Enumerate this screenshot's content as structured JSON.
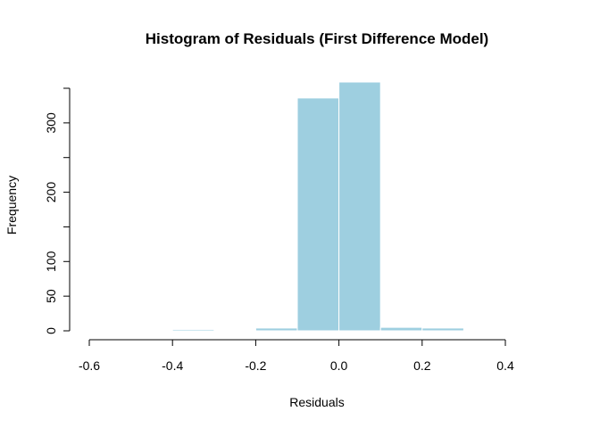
{
  "chart_data": {
    "type": "bar",
    "title": "Histogram of Residuals (First Difference Model)",
    "xlabel": "Residuals",
    "ylabel": "Frequency",
    "bar_color": "#9ECFE0",
    "border_color": "#FFFFFF",
    "xlim": [
      -0.6,
      0.5
    ],
    "ylim": [
      0,
      360
    ],
    "bins": [
      {
        "x0": -0.6,
        "x1": -0.5,
        "count": 0
      },
      {
        "x0": -0.5,
        "x1": -0.4,
        "count": 1
      },
      {
        "x0": -0.4,
        "x1": -0.3,
        "count": 2
      },
      {
        "x0": -0.3,
        "x1": -0.2,
        "count": 0
      },
      {
        "x0": -0.2,
        "x1": -0.1,
        "count": 4
      },
      {
        "x0": -0.1,
        "x1": 0.0,
        "count": 336
      },
      {
        "x0": 0.0,
        "x1": 0.1,
        "count": 359
      },
      {
        "x0": 0.1,
        "x1": 0.2,
        "count": 5
      },
      {
        "x0": 0.2,
        "x1": 0.3,
        "count": 4
      },
      {
        "x0": 0.3,
        "x1": 0.4,
        "count": 0
      },
      {
        "x0": 0.4,
        "x1": 0.5,
        "count": 0
      }
    ],
    "x_ticks": [
      {
        "value": -0.6,
        "label": "-0.6"
      },
      {
        "value": -0.4,
        "label": "-0.4"
      },
      {
        "value": -0.2,
        "label": "-0.2"
      },
      {
        "value": 0.0,
        "label": "0.0"
      },
      {
        "value": 0.2,
        "label": "0.2"
      },
      {
        "value": 0.4,
        "label": "0.4"
      }
    ],
    "y_ticks": [
      {
        "value": 0,
        "label": "0"
      },
      {
        "value": 50,
        "label": "50"
      },
      {
        "value": 100,
        "label": "100"
      },
      {
        "value": 150,
        "label": ""
      },
      {
        "value": 200,
        "label": "200"
      },
      {
        "value": 250,
        "label": ""
      },
      {
        "value": 300,
        "label": "300"
      },
      {
        "value": 350,
        "label": ""
      }
    ]
  }
}
